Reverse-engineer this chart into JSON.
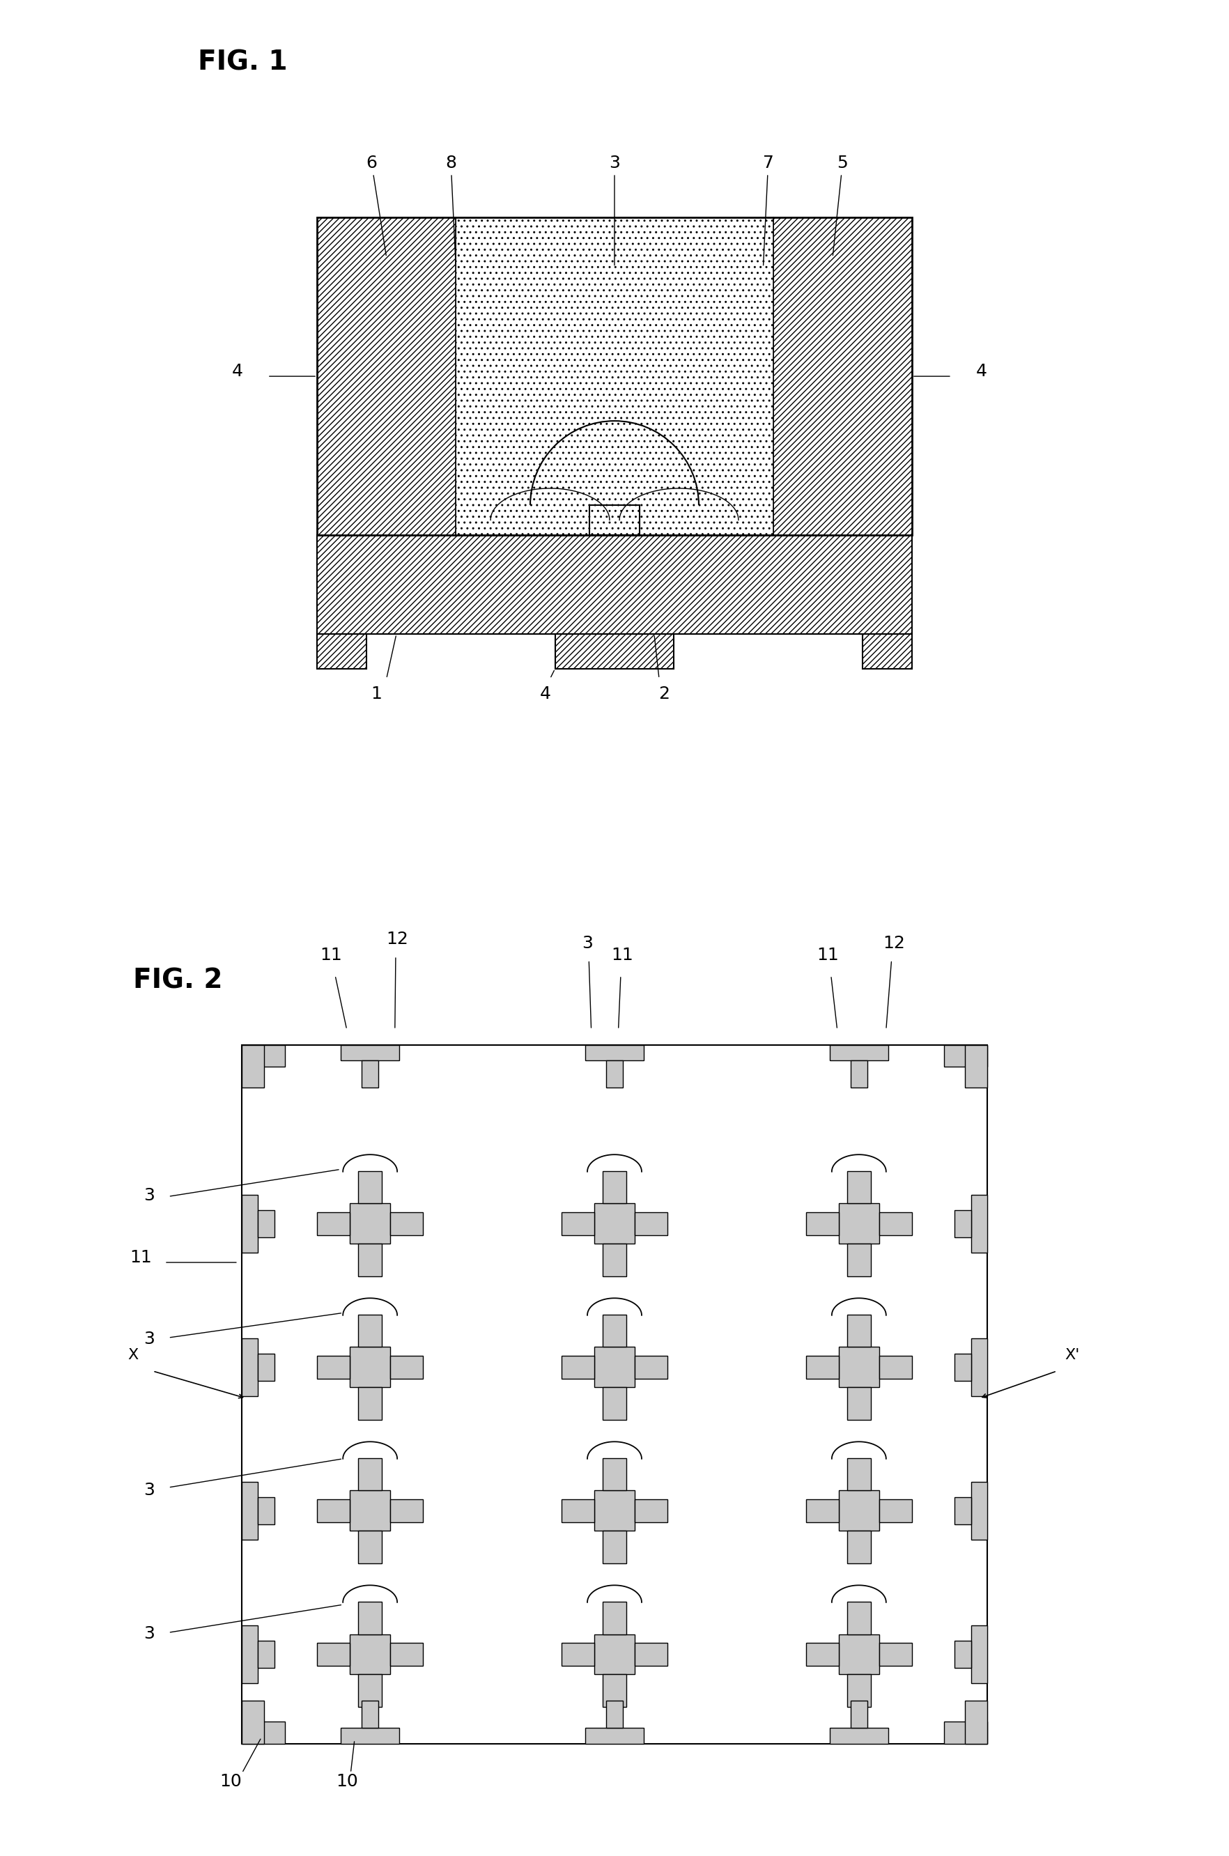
{
  "fig1_title": "FIG. 1",
  "fig2_title": "FIG. 2",
  "bg_color": "#ffffff",
  "line_color": "#000000",
  "hatch_color": "#000000",
  "label_fontsize": 18,
  "title_fontsize": 28
}
